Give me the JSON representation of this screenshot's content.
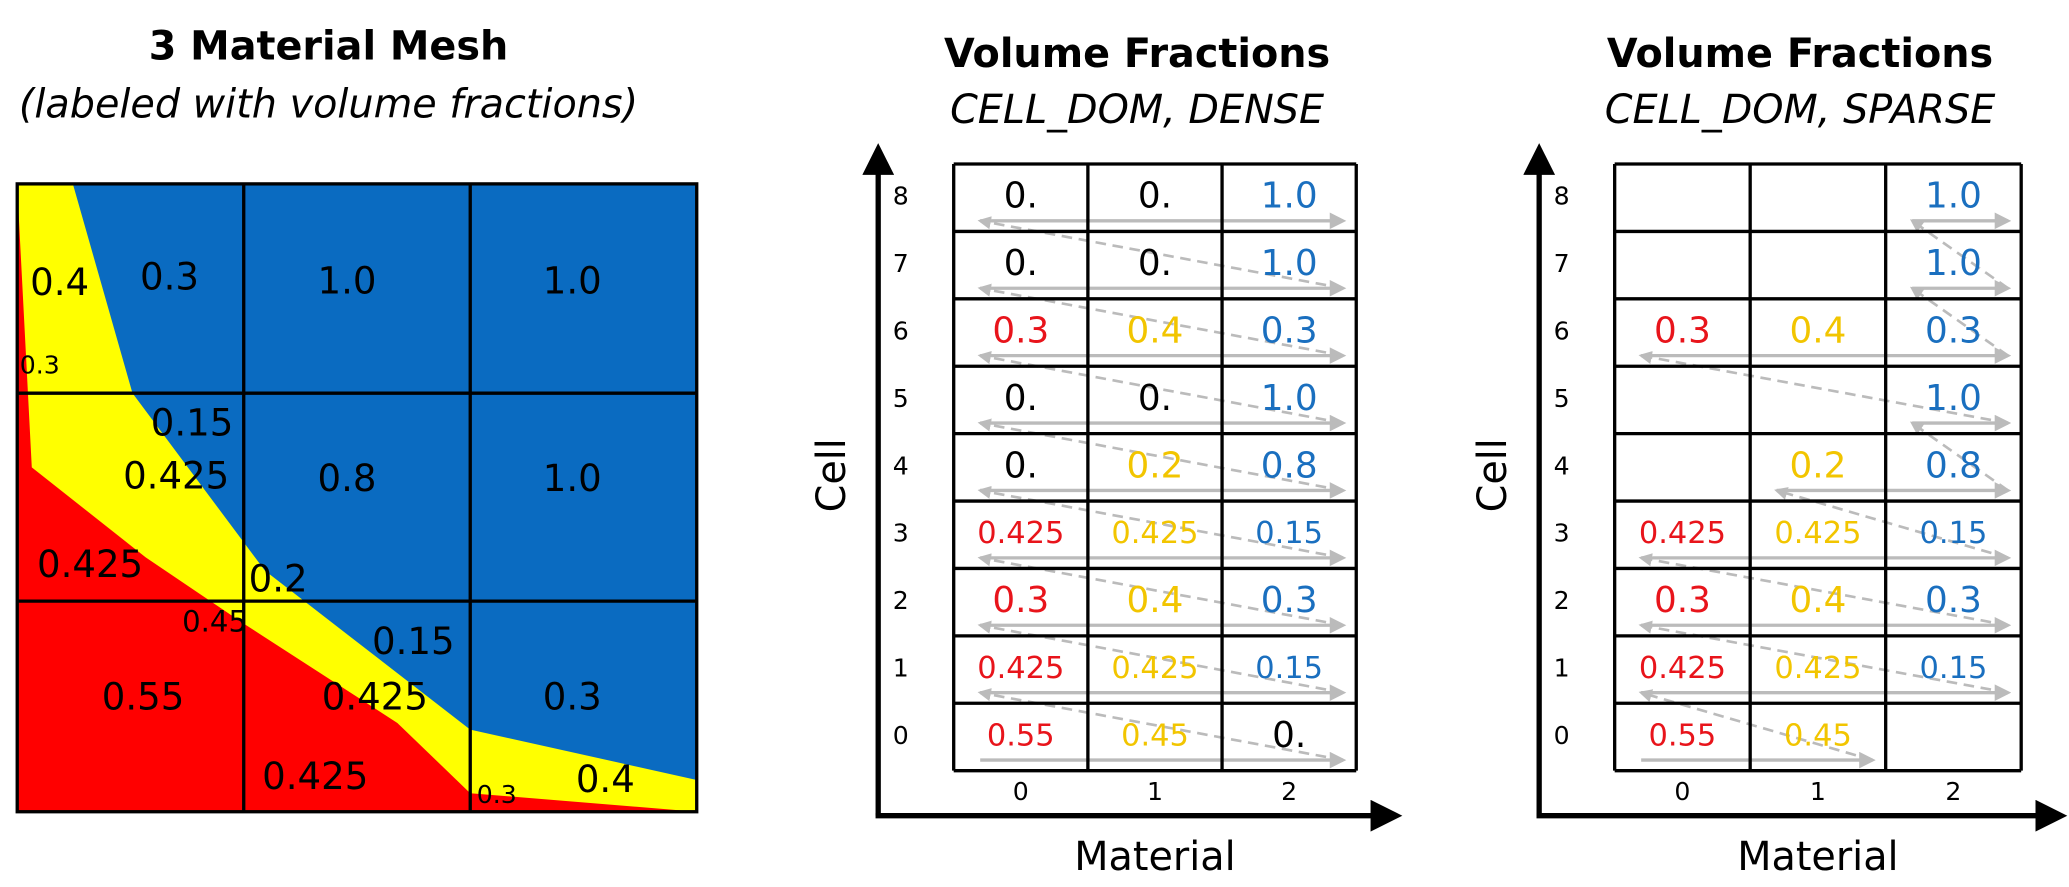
{
  "mesh": {
    "title": "3 Material Mesh",
    "subtitle": "(labeled with volume fractions)",
    "labels": [
      "0.4",
      "0.3",
      "1.0",
      "1.0",
      "0.3",
      "0.15",
      "0.425",
      "0.8",
      "1.0",
      "0.425",
      "0.2",
      "0.45",
      "0.15",
      "0.55",
      "0.425",
      "0.3",
      "0.425",
      "0.3",
      "0.4"
    ]
  },
  "tables": [
    {
      "title": "Volume Fractions",
      "subtitle": "CELL_DOM, DENSE",
      "y_label": "Cell",
      "x_label": "Material",
      "row_labels": [
        0,
        1,
        2,
        3,
        4,
        5,
        6,
        7,
        8
      ],
      "col_labels": [
        0,
        1,
        2
      ],
      "rows": [
        [
          {
            "v": "0.55",
            "color": "#e8141b"
          },
          {
            "v": "0.45",
            "color": "#f2c500"
          },
          {
            "v": "0.",
            "color": "#000000"
          }
        ],
        [
          {
            "v": "0.425",
            "color": "#e8141b"
          },
          {
            "v": "0.425",
            "color": "#f2c500"
          },
          {
            "v": "0.15",
            "color": "#1a6fbf"
          }
        ],
        [
          {
            "v": "0.3",
            "color": "#e8141b"
          },
          {
            "v": "0.4",
            "color": "#f2c500"
          },
          {
            "v": "0.3",
            "color": "#1a6fbf"
          }
        ],
        [
          {
            "v": "0.425",
            "color": "#e8141b"
          },
          {
            "v": "0.425",
            "color": "#f2c500"
          },
          {
            "v": "0.15",
            "color": "#1a6fbf"
          }
        ],
        [
          {
            "v": "0.",
            "color": "#000000"
          },
          {
            "v": "0.2",
            "color": "#f2c500"
          },
          {
            "v": "0.8",
            "color": "#1a6fbf"
          }
        ],
        [
          {
            "v": "0.",
            "color": "#000000"
          },
          {
            "v": "0.",
            "color": "#000000"
          },
          {
            "v": "1.0",
            "color": "#1a6fbf"
          }
        ],
        [
          {
            "v": "0.3",
            "color": "#e8141b"
          },
          {
            "v": "0.4",
            "color": "#f2c500"
          },
          {
            "v": "0.3",
            "color": "#1a6fbf"
          }
        ],
        [
          {
            "v": "0.",
            "color": "#000000"
          },
          {
            "v": "0.",
            "color": "#000000"
          },
          {
            "v": "1.0",
            "color": "#1a6fbf"
          }
        ],
        [
          {
            "v": "0.",
            "color": "#000000"
          },
          {
            "v": "0.",
            "color": "#000000"
          },
          {
            "v": "1.0",
            "color": "#1a6fbf"
          }
        ]
      ]
    },
    {
      "title": "Volume Fractions",
      "subtitle": "CELL_DOM, SPARSE",
      "y_label": "Cell",
      "x_label": "Material",
      "row_labels": [
        0,
        1,
        2,
        3,
        4,
        5,
        6,
        7,
        8
      ],
      "col_labels": [
        0,
        1,
        2
      ],
      "rows": [
        [
          {
            "v": "0.55",
            "color": "#e8141b"
          },
          {
            "v": "0.45",
            "color": "#f2c500"
          },
          null
        ],
        [
          {
            "v": "0.425",
            "color": "#e8141b"
          },
          {
            "v": "0.425",
            "color": "#f2c500"
          },
          {
            "v": "0.15",
            "color": "#1a6fbf"
          }
        ],
        [
          {
            "v": "0.3",
            "color": "#e8141b"
          },
          {
            "v": "0.4",
            "color": "#f2c500"
          },
          {
            "v": "0.3",
            "color": "#1a6fbf"
          }
        ],
        [
          {
            "v": "0.425",
            "color": "#e8141b"
          },
          {
            "v": "0.425",
            "color": "#f2c500"
          },
          {
            "v": "0.15",
            "color": "#1a6fbf"
          }
        ],
        [
          null,
          {
            "v": "0.2",
            "color": "#f2c500"
          },
          {
            "v": "0.8",
            "color": "#1a6fbf"
          }
        ],
        [
          null,
          null,
          {
            "v": "1.0",
            "color": "#1a6fbf"
          }
        ],
        [
          {
            "v": "0.3",
            "color": "#e8141b"
          },
          {
            "v": "0.4",
            "color": "#f2c500"
          },
          {
            "v": "0.3",
            "color": "#1a6fbf"
          }
        ],
        [
          null,
          null,
          {
            "v": "1.0",
            "color": "#1a6fbf"
          }
        ],
        [
          null,
          null,
          {
            "v": "1.0",
            "color": "#1a6fbf"
          }
        ]
      ]
    }
  ]
}
